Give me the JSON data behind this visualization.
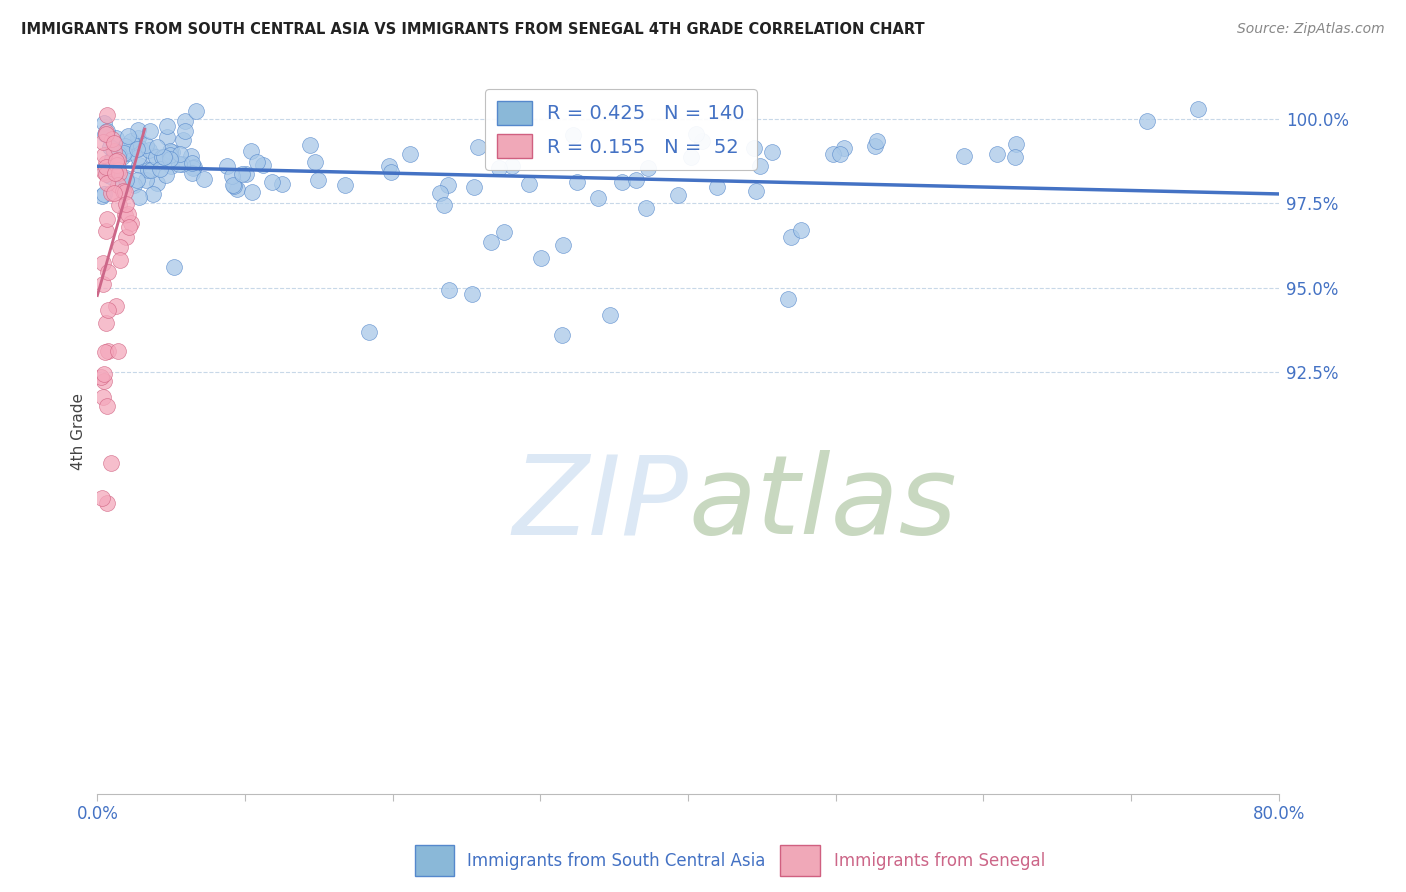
{
  "title": "IMMIGRANTS FROM SOUTH CENTRAL ASIA VS IMMIGRANTS FROM SENEGAL 4TH GRADE CORRELATION CHART",
  "source": "Source: ZipAtlas.com",
  "ylabel": "4th Grade",
  "blue_R": 0.425,
  "blue_N": 140,
  "pink_R": 0.155,
  "pink_N": 52,
  "blue_color": "#a8c8e8",
  "pink_color": "#f4a8bc",
  "blue_edge_color": "#5588cc",
  "pink_edge_color": "#d06080",
  "blue_line_color": "#4472c4",
  "pink_line_color": "#cc6688",
  "legend_blue_color": "#8ab8d8",
  "legend_pink_color": "#f0a8b8",
  "title_color": "#222222",
  "source_color": "#888888",
  "tick_label_color": "#4472c4",
  "grid_color": "#c8d8e8",
  "watermark_color": "#dce8f5",
  "xlim": [
    0,
    80
  ],
  "ylim": [
    80,
    101.5
  ],
  "y_ticks": [
    92.5,
    95.0,
    97.5,
    100.0
  ],
  "x_ticks": [
    0,
    10,
    20,
    30,
    40,
    50,
    60,
    70,
    80
  ]
}
